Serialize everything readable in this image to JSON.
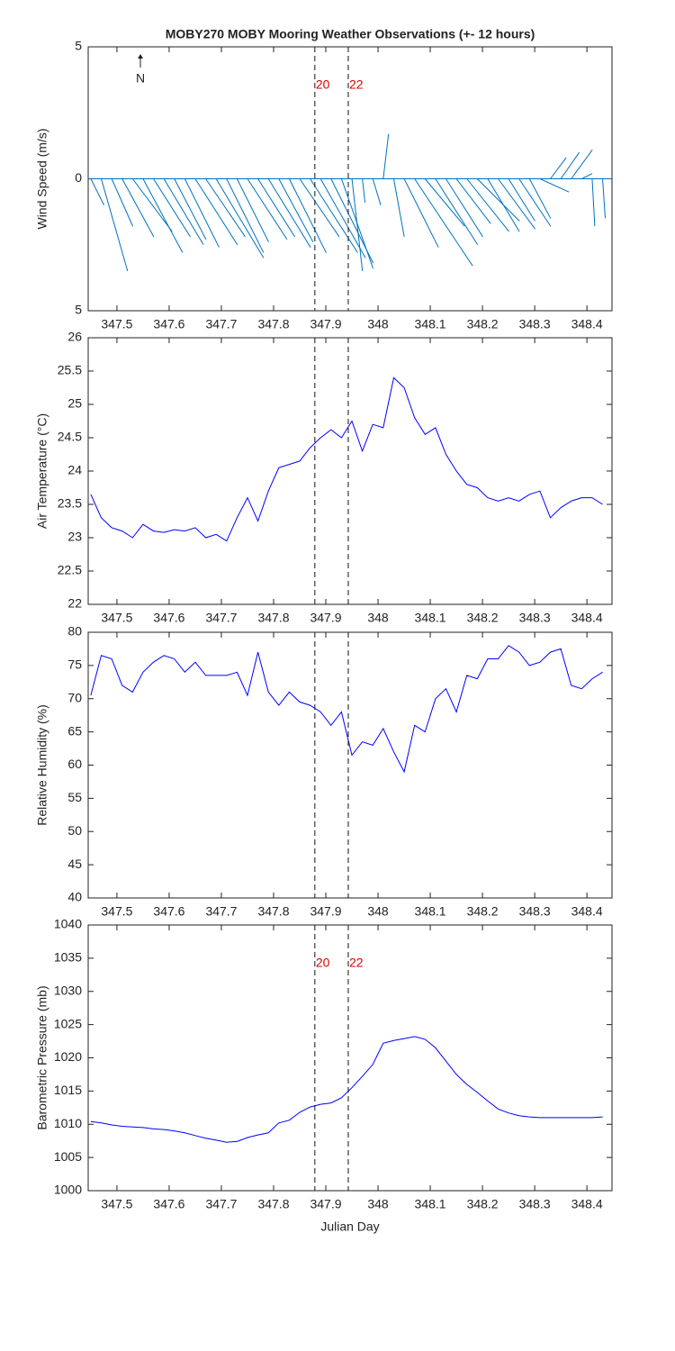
{
  "chart_data": [
    {
      "type": "stick",
      "title": "MOBY270 MOBY Mooring Weather Observations (+- 12 hours)",
      "ylabel": "Wind Speed (m/s)",
      "north_label": "N",
      "color": "#0072bd",
      "xlim": [
        347.445,
        348.448
      ],
      "xticks": [
        347.5,
        347.6,
        347.7,
        347.8,
        347.9,
        348,
        348.1,
        348.2,
        348.3,
        348.4
      ],
      "ylim": [
        -5,
        5
      ],
      "yticks": [
        {
          "value": -5,
          "label": "5"
        },
        0,
        5
      ],
      "markers": [
        {
          "x": 347.879,
          "label": "20"
        },
        {
          "x": 347.943,
          "label": "22"
        }
      ],
      "marker_labels": true,
      "marker_label_color": "#dd0000",
      "x": [
        347.45,
        347.47,
        347.49,
        347.51,
        347.53,
        347.55,
        347.57,
        347.59,
        347.61,
        347.63,
        347.65,
        347.67,
        347.69,
        347.71,
        347.73,
        347.75,
        347.77,
        347.79,
        347.81,
        347.83,
        347.85,
        347.87,
        347.89,
        347.91,
        347.93,
        347.95,
        347.97,
        347.99,
        348.01,
        348.03,
        348.05,
        348.07,
        348.09,
        348.11,
        348.13,
        348.15,
        348.17,
        348.19,
        348.21,
        348.23,
        348.25,
        348.27,
        348.29,
        348.31,
        348.33,
        348.35,
        348.37,
        348.39,
        348.41,
        348.43
      ],
      "u": [
        0.5,
        1.0,
        0.8,
        1.2,
        1.5,
        1.5,
        1.4,
        1.5,
        1.2,
        1.3,
        1.6,
        1.5,
        1.8,
        1.4,
        1.2,
        1.5,
        1.4,
        1.6,
        1.3,
        1.4,
        1.5,
        1.8,
        1.7,
        1.6,
        1.2,
        0.4,
        0.1,
        0.3,
        0.2,
        0.4,
        1.3,
        2.2,
        1.5,
        1.6,
        1.4,
        1.3,
        1.6,
        1.6,
        1.2,
        1.4,
        1.0,
        1.2,
        0.8,
        1.1,
        0.6,
        0.7,
        0.8,
        0.4,
        0.1,
        0.1
      ],
      "v": [
        -1,
        -3.5,
        -1.8,
        -2.2,
        -2,
        -2.8,
        -2.2,
        -2.5,
        -2.3,
        -2.6,
        -2.5,
        -2.2,
        -3,
        -2.8,
        -2.4,
        -2.3,
        -2.2,
        -2.6,
        -2.4,
        -2.8,
        -2.2,
        -2.8,
        -3.0,
        -3.2,
        -3.4,
        -3.5,
        -0.9,
        -1.0,
        1.7,
        -2.2,
        -2.6,
        -3.3,
        -1.8,
        -2.5,
        -2.2,
        -1.7,
        -2,
        -1.6,
        -2,
        -1.9,
        -1.6,
        -1.8,
        -1.5,
        -0.5,
        0.8,
        1.0,
        1.1,
        0.2,
        -1.8,
        -1.5
      ]
    },
    {
      "type": "line",
      "ylabel": "Air Temperature (°C)",
      "color": "#0000ff",
      "xlim": [
        347.445,
        348.448
      ],
      "xticks": [
        347.5,
        347.6,
        347.7,
        347.8,
        347.9,
        348,
        348.1,
        348.2,
        348.3,
        348.4
      ],
      "ylim": [
        22,
        26
      ],
      "yticks": [
        22,
        22.5,
        23,
        23.5,
        24,
        24.5,
        25,
        25.5,
        26
      ],
      "markers": [
        {
          "x": 347.879,
          "label": "20"
        },
        {
          "x": 347.943,
          "label": "22"
        }
      ],
      "marker_labels": false,
      "marker_label_color": "#dd0000",
      "x": [
        347.45,
        347.47,
        347.49,
        347.51,
        347.53,
        347.55,
        347.57,
        347.59,
        347.61,
        347.63,
        347.65,
        347.67,
        347.69,
        347.71,
        347.73,
        347.75,
        347.77,
        347.79,
        347.81,
        347.83,
        347.85,
        347.87,
        347.89,
        347.91,
        347.93,
        347.95,
        347.97,
        347.99,
        348.01,
        348.03,
        348.05,
        348.07,
        348.09,
        348.11,
        348.13,
        348.15,
        348.17,
        348.19,
        348.21,
        348.23,
        348.25,
        348.27,
        348.29,
        348.31,
        348.33,
        348.35,
        348.37,
        348.39,
        348.41,
        348.43
      ],
      "values": [
        23.65,
        23.3,
        23.15,
        23.1,
        23.0,
        23.2,
        23.1,
        23.08,
        23.12,
        23.1,
        23.15,
        23.0,
        23.05,
        22.95,
        23.3,
        23.6,
        23.25,
        23.7,
        24.05,
        24.1,
        24.15,
        24.35,
        24.5,
        24.62,
        24.5,
        24.75,
        24.3,
        24.7,
        24.65,
        25.4,
        25.25,
        24.8,
        24.55,
        24.65,
        24.25,
        24.0,
        23.8,
        23.75,
        23.6,
        23.55,
        23.6,
        23.55,
        23.65,
        23.7,
        23.3,
        23.45,
        23.55,
        23.6,
        23.6,
        23.5
      ]
    },
    {
      "type": "line",
      "ylabel": "Relative Humidity (%)",
      "color": "#0000ff",
      "xlim": [
        347.445,
        348.448
      ],
      "xticks": [
        347.5,
        347.6,
        347.7,
        347.8,
        347.9,
        348,
        348.1,
        348.2,
        348.3,
        348.4
      ],
      "ylim": [
        40,
        80
      ],
      "yticks": [
        40,
        45,
        50,
        55,
        60,
        65,
        70,
        75,
        80
      ],
      "markers": [
        {
          "x": 347.879,
          "label": "20"
        },
        {
          "x": 347.943,
          "label": "22"
        }
      ],
      "marker_labels": false,
      "marker_label_color": "#dd0000",
      "x": [
        347.45,
        347.47,
        347.49,
        347.51,
        347.53,
        347.55,
        347.57,
        347.59,
        347.61,
        347.63,
        347.65,
        347.67,
        347.69,
        347.71,
        347.73,
        347.75,
        347.77,
        347.79,
        347.81,
        347.83,
        347.85,
        347.87,
        347.89,
        347.91,
        347.93,
        347.95,
        347.97,
        347.99,
        348.01,
        348.03,
        348.05,
        348.07,
        348.09,
        348.11,
        348.13,
        348.15,
        348.17,
        348.19,
        348.21,
        348.23,
        348.25,
        348.27,
        348.29,
        348.31,
        348.33,
        348.35,
        348.37,
        348.39,
        348.41,
        348.43
      ],
      "values": [
        70.5,
        76.5,
        76,
        72,
        71,
        74,
        75.5,
        76.5,
        76,
        74,
        75.5,
        73.5,
        73.5,
        73.5,
        74,
        70.5,
        77,
        71,
        69,
        71,
        69.5,
        69,
        68,
        66,
        68,
        61.5,
        63.5,
        63,
        65.5,
        62,
        59,
        66,
        65,
        70,
        71.5,
        68,
        73.5,
        73,
        76,
        76,
        78,
        77,
        75,
        75.5,
        77,
        77.5,
        72,
        71.5,
        73,
        74
      ]
    },
    {
      "type": "line",
      "ylabel": "Barometric Pressure (mb)",
      "xlabel": "Julian Day",
      "color": "#0000ff",
      "xlim": [
        347.445,
        348.448
      ],
      "xticks": [
        347.5,
        347.6,
        347.7,
        347.8,
        347.9,
        348,
        348.1,
        348.2,
        348.3,
        348.4
      ],
      "ylim": [
        1000,
        1040
      ],
      "yticks": [
        1000,
        1005,
        1010,
        1015,
        1020,
        1025,
        1030,
        1035,
        1040
      ],
      "markers": [
        {
          "x": 347.879,
          "label": "20"
        },
        {
          "x": 347.943,
          "label": "22"
        }
      ],
      "marker_labels": true,
      "marker_label_color": "#dd0000",
      "x": [
        347.45,
        347.47,
        347.49,
        347.51,
        347.53,
        347.55,
        347.57,
        347.59,
        347.61,
        347.63,
        347.65,
        347.67,
        347.69,
        347.71,
        347.73,
        347.75,
        347.77,
        347.79,
        347.81,
        347.83,
        347.85,
        347.87,
        347.89,
        347.91,
        347.93,
        347.95,
        347.97,
        347.99,
        348.01,
        348.03,
        348.05,
        348.07,
        348.09,
        348.11,
        348.13,
        348.15,
        348.17,
        348.19,
        348.21,
        348.23,
        348.25,
        348.27,
        348.29,
        348.31,
        348.33,
        348.35,
        348.37,
        348.39,
        348.41,
        348.43
      ],
      "values": [
        1010.4,
        1010.2,
        1009.9,
        1009.7,
        1009.6,
        1009.5,
        1009.3,
        1009.2,
        1009.0,
        1008.7,
        1008.3,
        1007.9,
        1007.6,
        1007.3,
        1007.4,
        1008.0,
        1008.4,
        1008.7,
        1010.2,
        1010.6,
        1011.8,
        1012.6,
        1013.0,
        1013.2,
        1014.0,
        1015.5,
        1017.2,
        1019.0,
        1022.2,
        1022.6,
        1022.9,
        1023.2,
        1022.8,
        1021.5,
        1019.5,
        1017.5,
        1016.0,
        1014.8,
        1013.5,
        1012.3,
        1011.7,
        1011.3,
        1011.1,
        1011.0,
        1011.0,
        1011.0,
        1011.0,
        1011.0,
        1011.0,
        1011.1
      ]
    }
  ]
}
